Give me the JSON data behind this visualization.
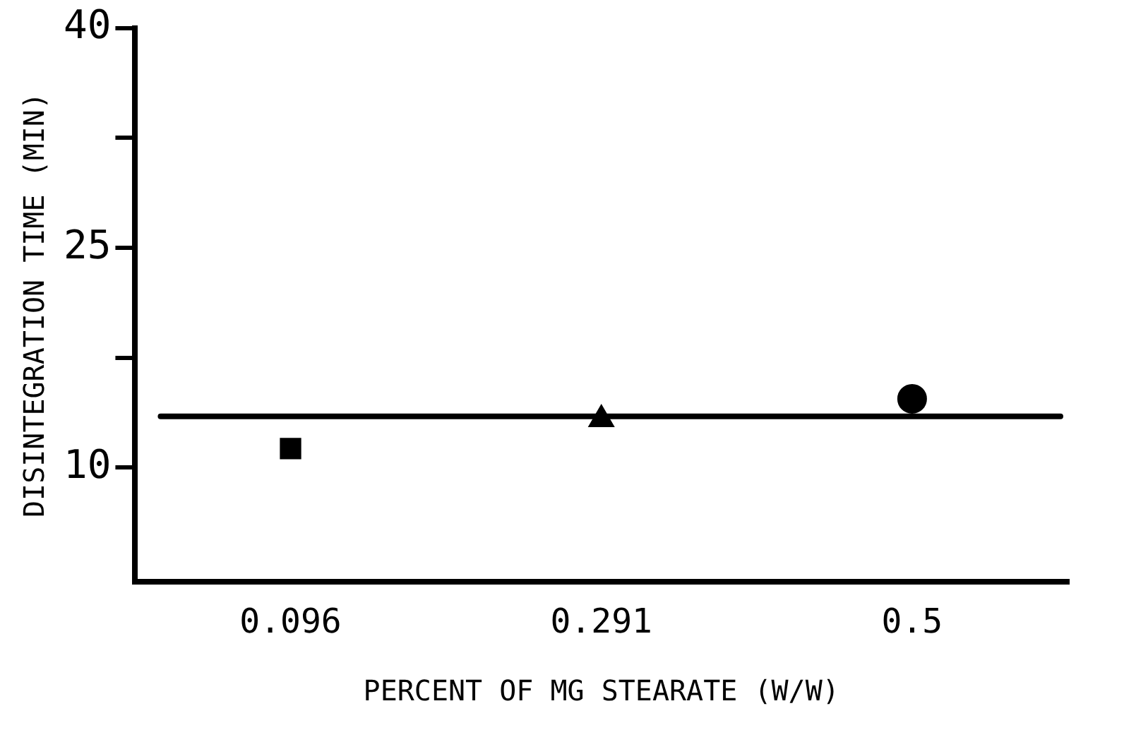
{
  "chart_data": {
    "type": "scatter",
    "xlabel": "PERCENT OF MG STEARATE (W/W)",
    "ylabel": "DISINTEGRATION TIME (MIN)",
    "categories": [
      "0.096",
      "0.291",
      "0.5"
    ],
    "series": [
      {
        "color": "#000000",
        "marker": "square",
        "values": [
          11.3,
          null,
          null
        ]
      },
      {
        "color": "#000000",
        "marker": "triangle",
        "values": [
          null,
          13.3,
          null
        ]
      },
      {
        "color": "#000000",
        "marker": "circle",
        "values": [
          null,
          null,
          14.7
        ]
      }
    ],
    "ref_lines": [
      {
        "axis": "y",
        "value": 13.5,
        "color": "#000000",
        "line_style": "solid"
      }
    ],
    "ylim": [
      2.2,
      40
    ],
    "yticks": [
      10,
      {
        "value": 17.5,
        "label": null
      },
      25,
      {
        "value": 32.5,
        "label": null
      },
      40
    ],
    "grid": false,
    "legend": false
  }
}
